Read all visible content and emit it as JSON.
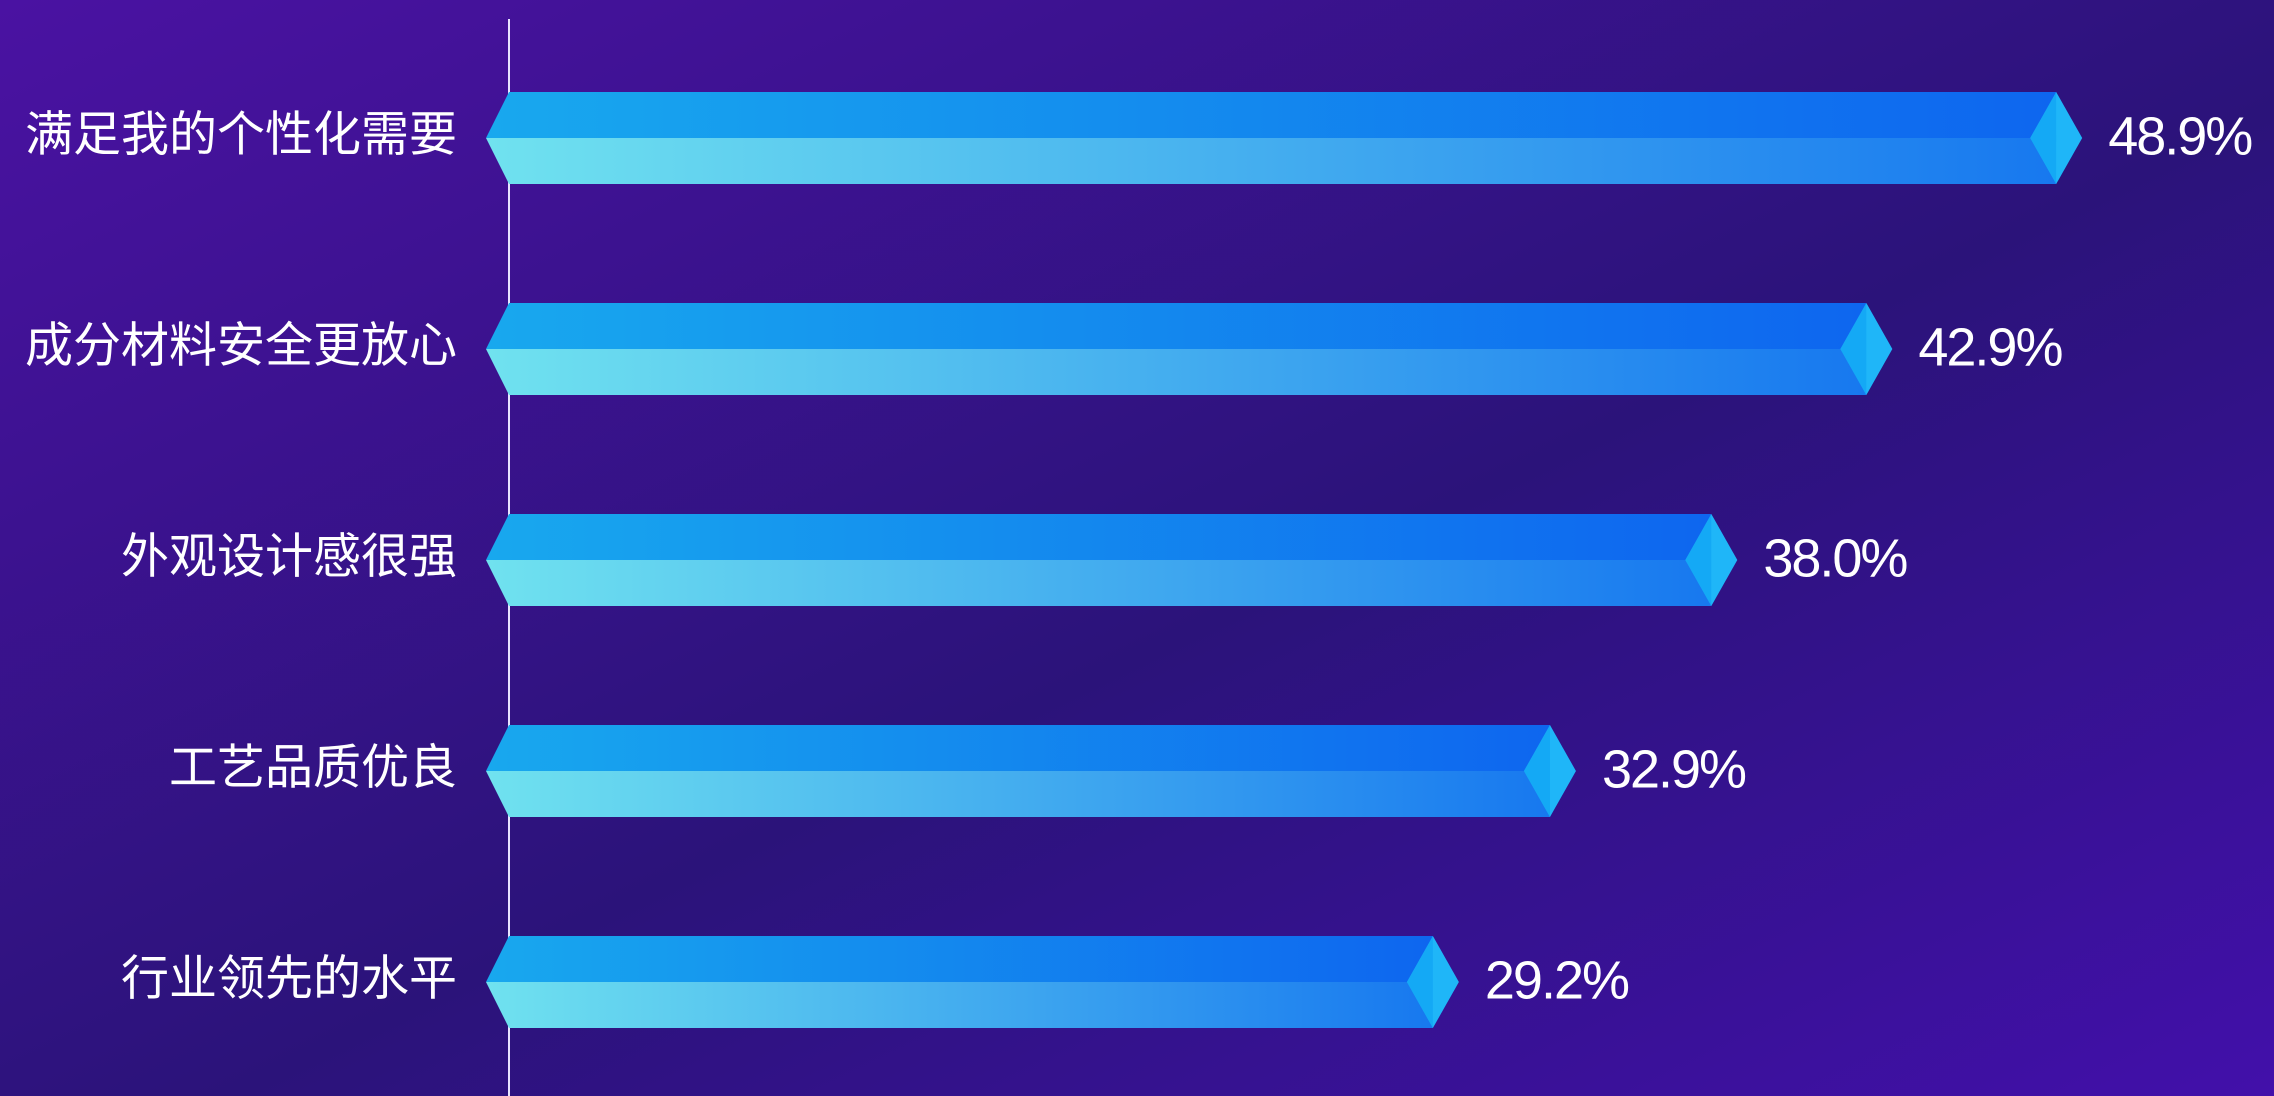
{
  "chart_data": {
    "type": "bar",
    "orientation": "horizontal",
    "categories": [
      "满足我的个性化需要",
      "成分材料安全更放心",
      "外观设计感很强",
      "工艺品质优良",
      "行业领先的水平"
    ],
    "values": [
      48.9,
      42.9,
      38.0,
      32.9,
      29.2
    ],
    "value_labels": [
      "48.9%",
      "42.9%",
      "38.0%",
      "32.9%",
      "29.2%"
    ],
    "xlim": [
      0,
      50
    ],
    "colors": {
      "top": [
        "#18a8ee",
        "#0e66ef"
      ],
      "bottom": [
        "#70e2ef",
        "#1778ef"
      ],
      "tip": "#1fb6f8"
    }
  }
}
